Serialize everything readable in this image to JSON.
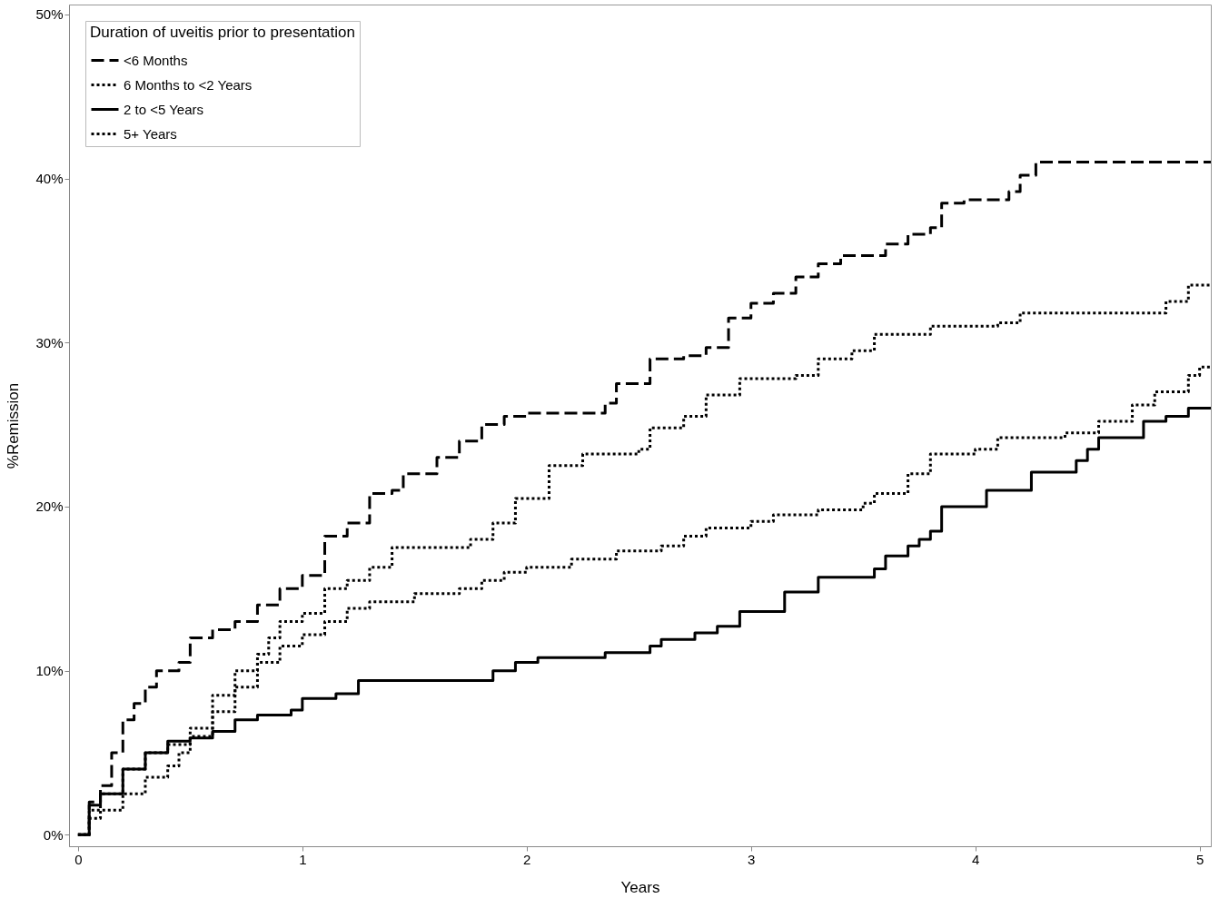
{
  "chart_data": {
    "type": "step",
    "xlabel": "Years",
    "ylabel": "%Remission",
    "legend_title": "Duration of uveitis prior to presentation",
    "legend": "top left",
    "grid": false,
    "xlim": [
      -0.04,
      5.05
    ],
    "ylim": [
      -0.7,
      50.6
    ],
    "xticks": [
      0,
      1,
      2,
      3,
      4,
      5
    ],
    "yticks": [
      {
        "value": 0,
        "label": "0%"
      },
      {
        "value": 10,
        "label": "10%"
      },
      {
        "value": 20,
        "label": "20%"
      },
      {
        "value": 30,
        "label": "30%"
      },
      {
        "value": 40,
        "label": "40%"
      },
      {
        "value": 50,
        "label": "50%"
      }
    ],
    "series": [
      {
        "name": "<6 Months",
        "color": "#000000",
        "line_style": "dashed",
        "x": [
          0,
          0.05,
          0.1,
          0.15,
          0.2,
          0.25,
          0.3,
          0.35,
          0.45,
          0.5,
          0.6,
          0.7,
          0.8,
          0.9,
          1.0,
          1.1,
          1.2,
          1.3,
          1.4,
          1.45,
          1.6,
          1.7,
          1.8,
          1.9,
          2.0,
          2.35,
          2.4,
          2.55,
          2.7,
          2.8,
          2.9,
          3.0,
          3.1,
          3.2,
          3.3,
          3.4,
          3.6,
          3.7,
          3.8,
          3.85,
          3.95,
          4.15,
          4.2,
          4.27,
          5.05
        ],
        "values": [
          0,
          2,
          3,
          5,
          7,
          8,
          9,
          10,
          10.5,
          12,
          12.5,
          13,
          14,
          15,
          15.8,
          18.2,
          19,
          20.8,
          21,
          22,
          23,
          24,
          25,
          25.5,
          25.7,
          26.3,
          27.5,
          29,
          29.2,
          29.7,
          31.5,
          32.4,
          33,
          34,
          34.8,
          35.3,
          36,
          36.6,
          37,
          38.5,
          38.7,
          39.2,
          40.2,
          41,
          41
        ]
      },
      {
        "name": "6 Months to <2 Years",
        "color": "#000000",
        "line_style": "dotted",
        "x": [
          0,
          0.05,
          0.1,
          0.2,
          0.3,
          0.4,
          0.5,
          0.6,
          0.7,
          0.8,
          0.85,
          0.9,
          1.0,
          1.1,
          1.2,
          1.3,
          1.4,
          1.75,
          1.85,
          1.95,
          2.1,
          2.25,
          2.5,
          2.55,
          2.7,
          2.8,
          2.95,
          3.2,
          3.3,
          3.45,
          3.55,
          3.8,
          4.1,
          4.2,
          4.85,
          4.95,
          5.05
        ],
        "values": [
          0,
          1.5,
          2.5,
          4,
          5,
          5.5,
          6.5,
          8.5,
          10,
          11,
          12,
          13,
          13.5,
          15,
          15.5,
          16.3,
          17.5,
          18,
          19,
          20.5,
          22.5,
          23.2,
          23.5,
          24.8,
          25.5,
          26.8,
          27.8,
          28,
          29,
          29.5,
          30.5,
          31,
          31.2,
          31.8,
          32.5,
          33.5,
          33.5
        ]
      },
      {
        "name": "2 to <5 Years",
        "color": "#000000",
        "line_style": "solid",
        "x": [
          0,
          0.05,
          0.1,
          0.2,
          0.3,
          0.4,
          0.5,
          0.6,
          0.7,
          0.8,
          0.95,
          1.0,
          1.15,
          1.25,
          1.85,
          1.95,
          2.05,
          2.35,
          2.55,
          2.6,
          2.75,
          2.85,
          2.95,
          3.15,
          3.3,
          3.55,
          3.6,
          3.7,
          3.75,
          3.8,
          3.85,
          4.05,
          4.25,
          4.45,
          4.5,
          4.55,
          4.75,
          4.85,
          4.95,
          5.05
        ],
        "values": [
          0,
          1.8,
          2.5,
          4,
          5,
          5.7,
          5.9,
          6.3,
          7,
          7.3,
          7.6,
          8.3,
          8.6,
          9.4,
          10,
          10.5,
          10.8,
          11.1,
          11.5,
          11.9,
          12.3,
          12.7,
          13.6,
          14.8,
          15.7,
          16.2,
          17,
          17.6,
          18,
          18.5,
          20,
          21,
          22.1,
          22.8,
          23.5,
          24.2,
          25.2,
          25.5,
          26,
          26
        ]
      },
      {
        "name": "5+ Years",
        "color": "#000000",
        "line_style": "dotted",
        "x": [
          0,
          0.05,
          0.1,
          0.2,
          0.3,
          0.4,
          0.45,
          0.5,
          0.6,
          0.7,
          0.8,
          0.9,
          1.0,
          1.1,
          1.2,
          1.3,
          1.5,
          1.7,
          1.8,
          1.9,
          2.0,
          2.2,
          2.4,
          2.6,
          2.7,
          2.8,
          3.0,
          3.1,
          3.3,
          3.5,
          3.55,
          3.7,
          3.8,
          4.0,
          4.1,
          4.4,
          4.55,
          4.7,
          4.8,
          4.95,
          5.0,
          5.05
        ],
        "values": [
          0,
          1,
          1.5,
          2.5,
          3.5,
          4.2,
          5,
          6,
          7.5,
          9,
          10.5,
          11.5,
          12.2,
          13,
          13.8,
          14.2,
          14.7,
          15,
          15.5,
          16,
          16.3,
          16.8,
          17.3,
          17.6,
          18.2,
          18.7,
          19.1,
          19.5,
          19.8,
          20.2,
          20.8,
          22,
          23.2,
          23.5,
          24.2,
          24.5,
          25.2,
          26.2,
          27,
          28,
          28.5,
          28.5
        ]
      }
    ]
  }
}
